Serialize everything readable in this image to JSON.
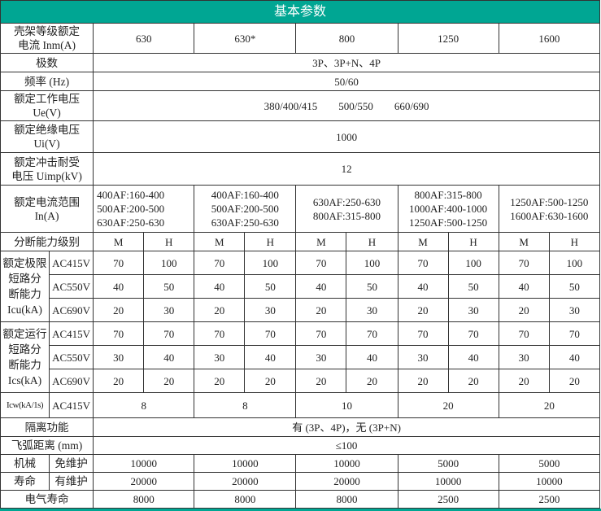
{
  "title": "基本参数",
  "colors": {
    "header": "#00a693"
  },
  "frame": {
    "label": "壳架等级额定电流 Inm(A)",
    "label1": "壳架等级额定",
    "label2": "电流 Inm(A)",
    "values": [
      "630",
      "630*",
      "800",
      "1250",
      "1600"
    ]
  },
  "poles": {
    "label": "极数",
    "value": "3P、3P+N、4P"
  },
  "freq": {
    "label": "频率 (Hz)",
    "value": "50/60"
  },
  "ue": {
    "label1": "额定工作电压",
    "label2": "Ue(V)",
    "value": "380/400/415　　500/550　　660/690"
  },
  "ui": {
    "label1": "额定绝缘电压",
    "label2": "Ui(V)",
    "value": "1000"
  },
  "uimp": {
    "label1": "额定冲击耐受",
    "label2": "电压 Uimp(kV)",
    "value": "12"
  },
  "in": {
    "label1": "额定电流范围",
    "label2": "In(A)",
    "values": [
      [
        "400AF:160-400",
        "500AF:200-500",
        "630AF:250-630"
      ],
      [
        "400AF:160-400",
        "500AF:200-500",
        "630AF:250-630"
      ],
      [
        "630AF:250-630",
        "800AF:315-800"
      ],
      [
        "800AF:315-800",
        "1000AF:400-1000",
        "1250AF:500-1250"
      ],
      [
        "1250AF:500-1250",
        "1600AF:630-1600"
      ]
    ]
  },
  "level": {
    "label": "分断能力级别",
    "m": "M",
    "h": "H"
  },
  "icu": {
    "label": [
      "额定极限",
      "短路分",
      "断能力",
      "Icu(kA)"
    ],
    "rows": [
      {
        "v": "AC415V",
        "vals": [
          "70",
          "100",
          "70",
          "100",
          "70",
          "100",
          "70",
          "100",
          "70",
          "100"
        ]
      },
      {
        "v": "AC550V",
        "vals": [
          "40",
          "50",
          "40",
          "50",
          "40",
          "50",
          "40",
          "50",
          "40",
          "50"
        ]
      },
      {
        "v": "AC690V",
        "vals": [
          "20",
          "30",
          "20",
          "30",
          "20",
          "30",
          "20",
          "30",
          "20",
          "30"
        ]
      }
    ]
  },
  "ics": {
    "label": [
      "额定运行",
      "短路分",
      "断能力",
      "Ics(kA)"
    ],
    "rows": [
      {
        "v": "AC415V",
        "vals": [
          "70",
          "70",
          "70",
          "70",
          "70",
          "70",
          "70",
          "70",
          "70",
          "70"
        ]
      },
      {
        "v": "AC550V",
        "vals": [
          "30",
          "40",
          "30",
          "40",
          "30",
          "40",
          "30",
          "40",
          "30",
          "40"
        ]
      },
      {
        "v": "AC690V",
        "vals": [
          "20",
          "20",
          "20",
          "20",
          "20",
          "20",
          "20",
          "20",
          "20",
          "20"
        ]
      }
    ]
  },
  "icw": {
    "label": "Icw(kA/1s)",
    "v": "AC415V",
    "vals": [
      "8",
      "8",
      "10",
      "20",
      "20"
    ]
  },
  "isolation": {
    "label": "隔离功能",
    "value": "有 (3P、4P)，无 (3P+N)"
  },
  "arc": {
    "label": "飞弧距离 (mm)",
    "value": "≤100"
  },
  "mech": {
    "label1": "机械",
    "label2": "寿命",
    "free": {
      "label": "免维护",
      "vals": [
        "10000",
        "10000",
        "10000",
        "5000",
        "5000"
      ]
    },
    "maint": {
      "label": "有维护",
      "vals": [
        "20000",
        "20000",
        "20000",
        "10000",
        "10000"
      ]
    }
  },
  "elec": {
    "label": "电气寿命",
    "vals": [
      "8000",
      "8000",
      "8000",
      "2500",
      "2500"
    ]
  }
}
